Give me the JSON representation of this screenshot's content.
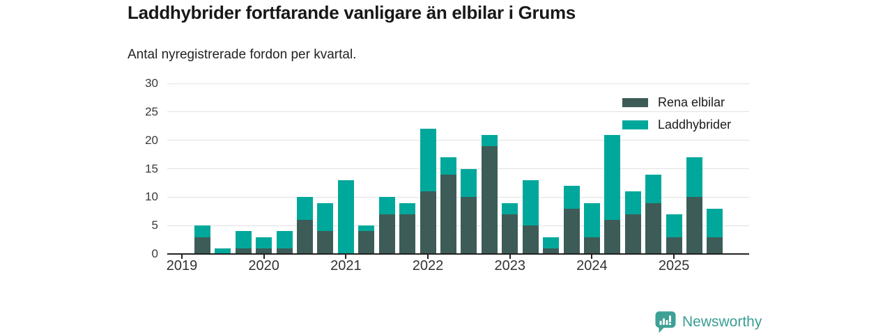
{
  "title": "Laddhybrider fortfarande vanligare än elbilar i Grums",
  "subtitle": "Antal nyregistrerade fordon per kvartal.",
  "legend": {
    "items": [
      {
        "label": "Rena elbilar",
        "color": "#3d5c57"
      },
      {
        "label": "Laddhybrider",
        "color": "#00a89b"
      }
    ]
  },
  "footer": {
    "brand": "Newsworthy",
    "brand_color": "#3a9e92",
    "icon": "newsworthy-speech-bubble-bar-chart-icon"
  },
  "colors": {
    "electric": "#3d5c57",
    "hybrid": "#00a89b",
    "gridline": "#e2e2e2",
    "axis": "#222222",
    "text": "#1a1a1a"
  },
  "chart_data": {
    "type": "bar",
    "stacked": true,
    "title": "Laddhybrider fortfarande vanligare än elbilar i Grums",
    "subtitle": "Antal nyregistrerade fordon per kvartal.",
    "xlabel": "",
    "ylabel": "",
    "ylim": [
      0,
      30
    ],
    "yticks": [
      0,
      5,
      10,
      15,
      20,
      25,
      30
    ],
    "grid": true,
    "legend_position": "top-right",
    "quarters": [
      "2019-Q1",
      "2019-Q2",
      "2019-Q3",
      "2019-Q4",
      "2020-Q1",
      "2020-Q2",
      "2020-Q3",
      "2020-Q4",
      "2021-Q1",
      "2021-Q2",
      "2021-Q3",
      "2021-Q4",
      "2022-Q1",
      "2022-Q2",
      "2022-Q3",
      "2022-Q4",
      "2023-Q1",
      "2023-Q2",
      "2023-Q3",
      "2023-Q4",
      "2024-Q1",
      "2024-Q2",
      "2024-Q3",
      "2024-Q4",
      "2025-Q1",
      "2025-Q2",
      "2025-Q3"
    ],
    "year_labels": [
      "2019",
      "2020",
      "2021",
      "2022",
      "2023",
      "2024",
      "2025"
    ],
    "series": [
      {
        "name": "Rena elbilar",
        "color": "#3d5c57",
        "values": [
          0,
          3,
          0,
          1,
          1,
          1,
          6,
          4,
          0,
          4,
          7,
          7,
          11,
          14,
          10,
          19,
          7,
          5,
          1,
          8,
          3,
          6,
          7,
          9,
          3,
          10,
          3
        ]
      },
      {
        "name": "Laddhybrider",
        "color": "#00a89b",
        "values": [
          0,
          2,
          1,
          3,
          2,
          3,
          4,
          5,
          13,
          1,
          3,
          2,
          11,
          3,
          5,
          2,
          2,
          8,
          2,
          4,
          6,
          15,
          4,
          5,
          4,
          7,
          5
        ]
      }
    ]
  }
}
